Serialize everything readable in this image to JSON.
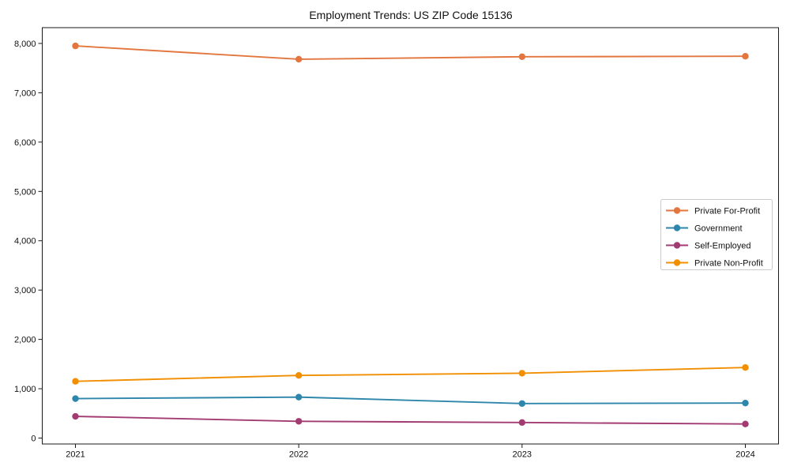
{
  "chart_data": {
    "type": "line",
    "title": "Employment Trends: US ZIP Code 15136",
    "categories": [
      "2021",
      "2022",
      "2023",
      "2024"
    ],
    "series": [
      {
        "name": "Private For-Profit",
        "color": "#E2763E",
        "values": [
          7950,
          7680,
          7730,
          7740
        ]
      },
      {
        "name": "Government",
        "color": "#2E86AB",
        "values": [
          800,
          830,
          700,
          710
        ]
      },
      {
        "name": "Self-Employed",
        "color": "#A23B72",
        "values": [
          440,
          340,
          315,
          285
        ]
      },
      {
        "name": "Private Non-Profit",
        "color": "#F18F01",
        "values": [
          1150,
          1270,
          1315,
          1430
        ]
      }
    ],
    "xlabel": "",
    "ylabel": "",
    "ylim": [
      -120,
      8320
    ],
    "yticks": {
      "values": [
        0,
        1000,
        2000,
        3000,
        4000,
        5000,
        6000,
        7000,
        8000
      ],
      "labels": [
        "0",
        "1,000",
        "2,000",
        "3,000",
        "4,000",
        "5,000",
        "6,000",
        "7,000",
        "8,000"
      ]
    },
    "grid": false,
    "legend_position": "center-right",
    "axis_color": "#1a1a1a",
    "text_color": "#111111",
    "legend_border_color": "#cccccc",
    "background": "#ffffff"
  }
}
